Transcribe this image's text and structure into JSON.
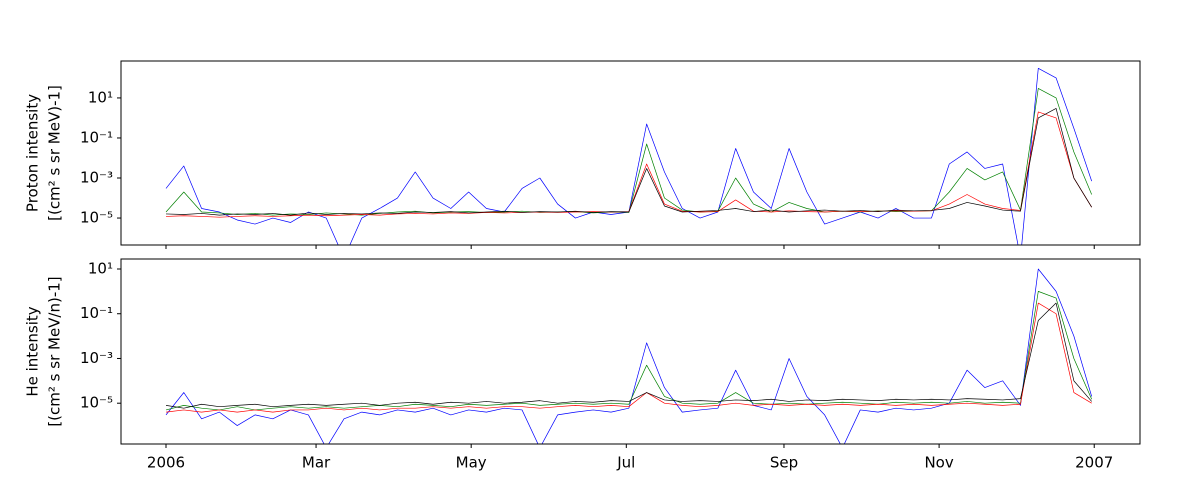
{
  "chart_data": [
    {
      "type": "line",
      "log_y": true,
      "ylabel": [
        "Proton intensity",
        "[(cm² s sr MeV)-1]"
      ],
      "x": [
        0,
        7,
        14,
        21,
        28,
        35,
        42,
        49,
        56,
        63,
        70,
        77,
        84,
        91,
        98,
        105,
        112,
        119,
        126,
        133,
        140,
        147,
        154,
        161,
        168,
        175,
        182,
        189,
        196,
        203,
        210,
        217,
        224,
        231,
        238,
        245,
        252,
        259,
        266,
        273,
        280,
        287,
        294,
        301,
        308,
        315,
        322,
        329,
        336,
        343,
        350,
        357,
        364
      ],
      "xlim": [
        -17.7,
        383
      ],
      "xticks": [
        0,
        59,
        120,
        181,
        243,
        304,
        365
      ],
      "ylim": [
        4.5e-07,
        700
      ],
      "yticks": [
        {
          "value": 1e-05,
          "label": "10⁻⁵"
        },
        {
          "value": 0.001,
          "label": "10⁻³"
        },
        {
          "value": 0.1,
          "label": "10⁻¹"
        },
        {
          "value": 10,
          "label": "10¹"
        }
      ],
      "series": [
        {
          "color": "#0000ff",
          "values": [
            0.0003,
            0.004,
            3e-05,
            2e-05,
            8e-06,
            5e-06,
            1e-05,
            6e-06,
            2e-05,
            1e-05,
            1e-07,
            1e-05,
            3e-05,
            0.0001,
            0.002,
            0.0001,
            3e-05,
            0.0002,
            3e-05,
            2e-05,
            0.0003,
            0.001,
            5e-05,
            1e-05,
            2e-05,
            1.5e-05,
            2e-05,
            0.5,
            0.002,
            3e-05,
            1e-05,
            2e-05,
            0.03,
            0.0002,
            3e-05,
            0.03,
            0.0002,
            5e-06,
            1e-05,
            2e-05,
            1e-05,
            3e-05,
            1e-05,
            1e-05,
            0.005,
            0.02,
            0.003,
            0.005,
            1e-07,
            300,
            100,
            0.3,
            0.0007
          ]
        },
        {
          "color": "#008000",
          "values": [
            2e-05,
            0.0002,
            2e-05,
            1.8e-05,
            1.5e-05,
            1.7e-05,
            1.4e-05,
            1.6e-05,
            1.5e-05,
            1.8e-05,
            1.6e-05,
            1.4e-05,
            1.7e-05,
            2e-05,
            2.2e-05,
            1.8e-05,
            2e-05,
            2.1e-05,
            1.9e-05,
            2e-05,
            2.2e-05,
            1.9e-05,
            2e-05,
            2.1e-05,
            1.8e-05,
            2e-05,
            1.9e-05,
            0.05,
            0.0001,
            2.5e-05,
            2e-05,
            2.2e-05,
            0.001,
            5e-05,
            2e-05,
            6e-05,
            3e-05,
            2e-05,
            2.2e-05,
            2e-05,
            2.3e-05,
            2.1e-05,
            2.2e-05,
            2.3e-05,
            0.0002,
            0.003,
            0.0008,
            0.002,
            2.5e-05,
            30,
            10,
            0.02,
            0.00015
          ]
        },
        {
          "color": "#ff0000",
          "values": [
            1.2e-05,
            1.3e-05,
            1.2e-05,
            1.1e-05,
            1.2e-05,
            1.3e-05,
            1.2e-05,
            1.3e-05,
            1.4e-05,
            1.3e-05,
            1.4e-05,
            1.5e-05,
            1.4e-05,
            1.6e-05,
            1.7e-05,
            1.6e-05,
            1.8e-05,
            1.7e-05,
            1.9e-05,
            1.8e-05,
            1.9e-05,
            2e-05,
            1.9e-05,
            2e-05,
            2.1e-05,
            2e-05,
            2.1e-05,
            0.005,
            5e-05,
            2.2e-05,
            2e-05,
            2.1e-05,
            8e-05,
            2.2e-05,
            2e-05,
            2.3e-05,
            2.1e-05,
            2e-05,
            2.2e-05,
            2.1e-05,
            2.2e-05,
            2.3e-05,
            2.2e-05,
            2.3e-05,
            5e-05,
            0.00015,
            5e-05,
            3e-05,
            2.4e-05,
            2,
            1,
            0.001,
            3.5e-05
          ]
        },
        {
          "color": "#000000",
          "values": [
            1.6e-05,
            1.5e-05,
            1.7e-05,
            1.4e-05,
            1.6e-05,
            1.5e-05,
            1.7e-05,
            1.4e-05,
            1.8e-05,
            1.5e-05,
            1.7e-05,
            1.6e-05,
            1.8e-05,
            1.7e-05,
            2e-05,
            1.9e-05,
            2.1e-05,
            1.8e-05,
            2e-05,
            2.2e-05,
            1.9e-05,
            2.1e-05,
            2e-05,
            2.2e-05,
            1.9e-05,
            2.1e-05,
            2e-05,
            0.003,
            4e-05,
            2e-05,
            2.2e-05,
            2.4e-05,
            3e-05,
            2.1e-05,
            2.5e-05,
            2e-05,
            2.3e-05,
            2.5e-05,
            2.2e-05,
            2.4e-05,
            2.1e-05,
            2.5e-05,
            2.3e-05,
            2.4e-05,
            3e-05,
            6e-05,
            4e-05,
            2.5e-05,
            2.2e-05,
            1,
            3,
            0.001,
            3.5e-05
          ]
        }
      ]
    },
    {
      "type": "line",
      "log_y": true,
      "ylabel": [
        "He intensity",
        "[(cm² s sr MeV/n)-1]"
      ],
      "x": [
        0,
        7,
        14,
        21,
        28,
        35,
        42,
        49,
        56,
        63,
        70,
        77,
        84,
        91,
        98,
        105,
        112,
        119,
        126,
        133,
        140,
        147,
        154,
        161,
        168,
        175,
        182,
        189,
        196,
        203,
        210,
        217,
        224,
        231,
        238,
        245,
        252,
        259,
        266,
        273,
        280,
        287,
        294,
        301,
        308,
        315,
        322,
        329,
        336,
        343,
        350,
        357,
        364
      ],
      "xlim": [
        -17.7,
        383
      ],
      "xticks": [
        {
          "value": 0,
          "label": "2006"
        },
        {
          "value": 59,
          "label": "Mar"
        },
        {
          "value": 120,
          "label": "May"
        },
        {
          "value": 181,
          "label": "Jul"
        },
        {
          "value": 243,
          "label": "Sep"
        },
        {
          "value": 304,
          "label": "Nov"
        },
        {
          "value": 365,
          "label": "2007"
        }
      ],
      "ylim": [
        1.5e-07,
        28
      ],
      "yticks": [
        {
          "value": 1e-05,
          "label": "10⁻⁵"
        },
        {
          "value": 0.001,
          "label": "10⁻³"
        },
        {
          "value": 0.1,
          "label": "10⁻¹"
        },
        {
          "value": 10,
          "label": "10¹"
        }
      ],
      "series": [
        {
          "color": "#0000ff",
          "values": [
            3e-06,
            3e-05,
            2e-06,
            4e-06,
            1e-06,
            3e-06,
            2e-06,
            5e-06,
            3e-06,
            1e-07,
            2e-06,
            4e-06,
            3e-06,
            5e-06,
            4e-06,
            6e-06,
            3e-06,
            5e-06,
            4e-06,
            6e-06,
            5e-06,
            1e-07,
            3e-06,
            4e-06,
            5e-06,
            4e-06,
            6e-06,
            0.005,
            5e-05,
            4e-06,
            5e-06,
            6e-06,
            0.0003,
            8e-06,
            5e-06,
            0.001,
            2e-05,
            3e-06,
            1e-07,
            5e-06,
            4e-06,
            6e-06,
            5e-06,
            6e-06,
            1e-05,
            0.0003,
            5e-05,
            0.0001,
            8e-06,
            10,
            1,
            0.01,
            2e-05
          ]
        },
        {
          "color": "#008000",
          "values": [
            5e-06,
            8e-06,
            6e-06,
            5e-06,
            7e-06,
            5e-06,
            6e-06,
            7e-06,
            6e-06,
            7e-06,
            6e-06,
            7e-06,
            8e-06,
            7e-06,
            9e-06,
            8e-06,
            7e-06,
            9e-06,
            8e-06,
            9e-06,
            1e-05,
            8e-06,
            9e-06,
            1e-05,
            9e-06,
            1e-05,
            9e-06,
            0.0005,
            2e-05,
            1e-05,
            9e-06,
            1e-05,
            3e-05,
            1e-05,
            9e-06,
            1e-05,
            9e-06,
            1e-05,
            1.1e-05,
            1e-05,
            9e-06,
            1.1e-05,
            1e-05,
            1.1e-05,
            1e-05,
            1.2e-05,
            1e-05,
            1.1e-05,
            1e-05,
            1,
            0.5,
            0.001,
            1.5e-05
          ]
        },
        {
          "color": "#ff0000",
          "values": [
            4e-06,
            5e-06,
            4e-06,
            5e-06,
            4e-06,
            5e-06,
            4e-06,
            5e-06,
            5e-06,
            6e-06,
            5e-06,
            6e-06,
            5e-06,
            6e-06,
            6e-06,
            7e-06,
            6e-06,
            7e-06,
            6e-06,
            7e-06,
            7e-06,
            6e-06,
            7e-06,
            8e-06,
            7e-06,
            8e-06,
            7e-06,
            3e-05,
            1e-05,
            8e-06,
            7e-06,
            8e-06,
            1e-05,
            8e-06,
            9e-06,
            8e-06,
            9e-06,
            8e-06,
            9e-06,
            8e-06,
            9e-06,
            8e-06,
            9e-06,
            8e-06,
            9e-06,
            1e-05,
            9e-06,
            8e-06,
            9e-06,
            0.3,
            0.1,
            3e-05,
            1e-05
          ]
        },
        {
          "color": "#000000",
          "values": [
            8e-06,
            6e-06,
            9e-06,
            7e-06,
            8e-06,
            9e-06,
            7e-06,
            8e-06,
            9e-06,
            8e-06,
            9e-06,
            1e-05,
            8e-06,
            1e-05,
            1.1e-05,
            9e-06,
            1.1e-05,
            1e-05,
            1.2e-05,
            1e-05,
            1.1e-05,
            1.3e-05,
            1e-05,
            1.2e-05,
            1.1e-05,
            1.3e-05,
            1.2e-05,
            3e-05,
            1.4e-05,
            1.2e-05,
            1.3e-05,
            1.2e-05,
            1.4e-05,
            1.3e-05,
            1.5e-05,
            1.2e-05,
            1.4e-05,
            1.3e-05,
            1.5e-05,
            1.4e-05,
            1.3e-05,
            1.5e-05,
            1.4e-05,
            1.5e-05,
            1.4e-05,
            1.6e-05,
            1.5e-05,
            1.4e-05,
            1.6e-05,
            0.05,
            0.3,
            0.0001,
            1.2e-05
          ]
        }
      ]
    }
  ]
}
